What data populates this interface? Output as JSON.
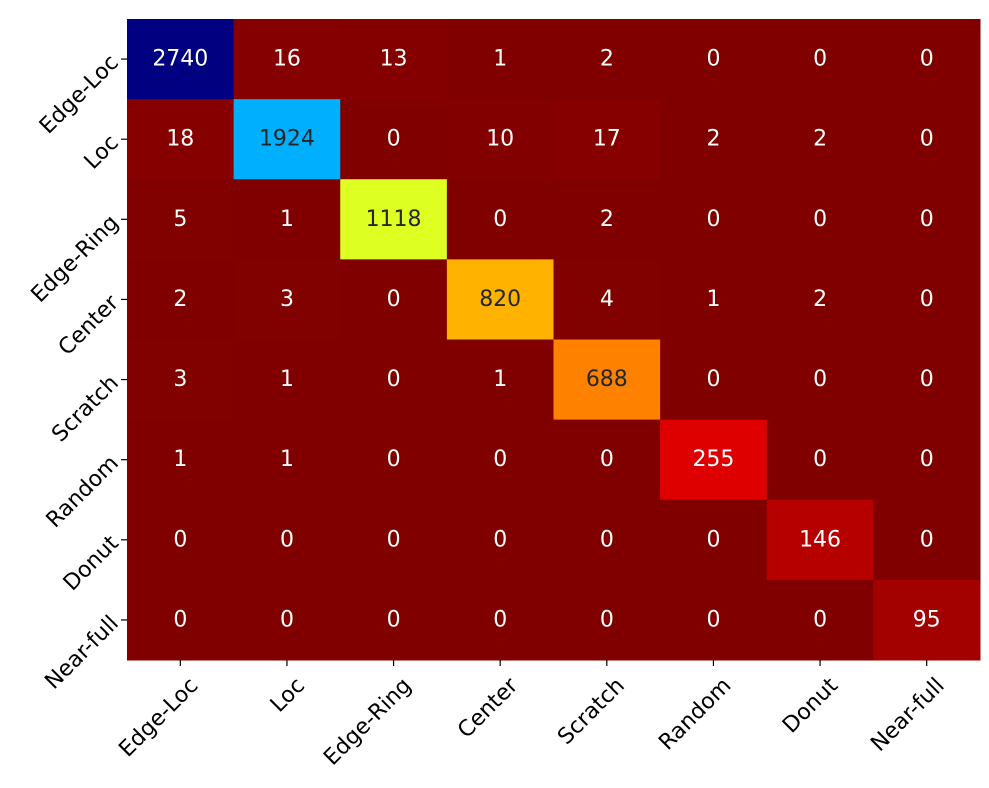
{
  "chart_data": {
    "type": "heatmap",
    "title": "",
    "xlabel": "",
    "ylabel": "",
    "x_categories": [
      "Edge-Loc",
      "Loc",
      "Edge-Ring",
      "Center",
      "Scratch",
      "Random",
      "Donut",
      "Near-full"
    ],
    "y_categories": [
      "Edge-Loc",
      "Loc",
      "Edge-Ring",
      "Center",
      "Scratch",
      "Random",
      "Donut",
      "Near-full"
    ],
    "values": [
      [
        2740,
        16,
        13,
        1,
        2,
        0,
        0,
        0
      ],
      [
        18,
        1924,
        0,
        10,
        17,
        2,
        2,
        0
      ],
      [
        5,
        1,
        1118,
        0,
        2,
        0,
        0,
        0
      ],
      [
        2,
        3,
        0,
        820,
        4,
        1,
        2,
        0
      ],
      [
        3,
        1,
        0,
        1,
        688,
        0,
        0,
        0
      ],
      [
        1,
        1,
        0,
        0,
        0,
        255,
        0,
        0
      ],
      [
        0,
        0,
        0,
        0,
        0,
        0,
        146,
        0
      ],
      [
        0,
        0,
        0,
        0,
        0,
        0,
        0,
        95
      ]
    ],
    "colormap": "jet_r",
    "color_range": [
      0,
      2740
    ],
    "annotations": true,
    "colorbar": false,
    "tick_rotation_degrees": 45
  }
}
